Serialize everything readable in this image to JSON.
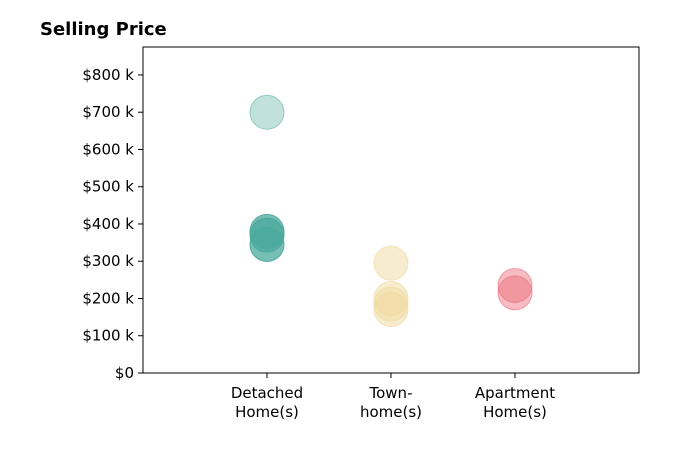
{
  "chart_data": {
    "type": "scatter",
    "title": "Selling Price",
    "xlabel": "",
    "ylabel": "",
    "categories": [
      [
        "Detached",
        "Home(s)"
      ],
      [
        "Town-",
        "home(s)"
      ],
      [
        "Apartment",
        "Home(s)"
      ]
    ],
    "yticks": [
      0,
      100,
      200,
      300,
      400,
      500,
      600,
      700,
      800
    ],
    "ytick_labels": [
      "$0",
      "$100 k",
      "$200 k",
      "$300 k",
      "$400 k",
      "$500 k",
      "$600 k",
      "$700 k",
      "$800 k"
    ],
    "ylim": [
      0,
      875
    ],
    "xlim": [
      -1,
      3
    ],
    "series": [
      {
        "color": "#4aa89c",
        "points": [
          [
            0,
            700,
            0.35
          ],
          [
            0,
            380,
            0.75
          ],
          [
            0,
            370,
            0.75
          ],
          [
            0,
            345,
            0.75
          ]
        ]
      },
      {
        "color": "#f0d9a0",
        "points": [
          [
            1,
            295,
            0.5
          ],
          [
            1,
            200,
            0.5
          ],
          [
            1,
            185,
            0.5
          ],
          [
            1,
            170,
            0.5
          ]
        ]
      },
      {
        "color": "#ec6b78",
        "points": [
          [
            2,
            235,
            0.45
          ],
          [
            2,
            215,
            0.45
          ]
        ]
      }
    ],
    "grid": false,
    "legend": "none"
  }
}
